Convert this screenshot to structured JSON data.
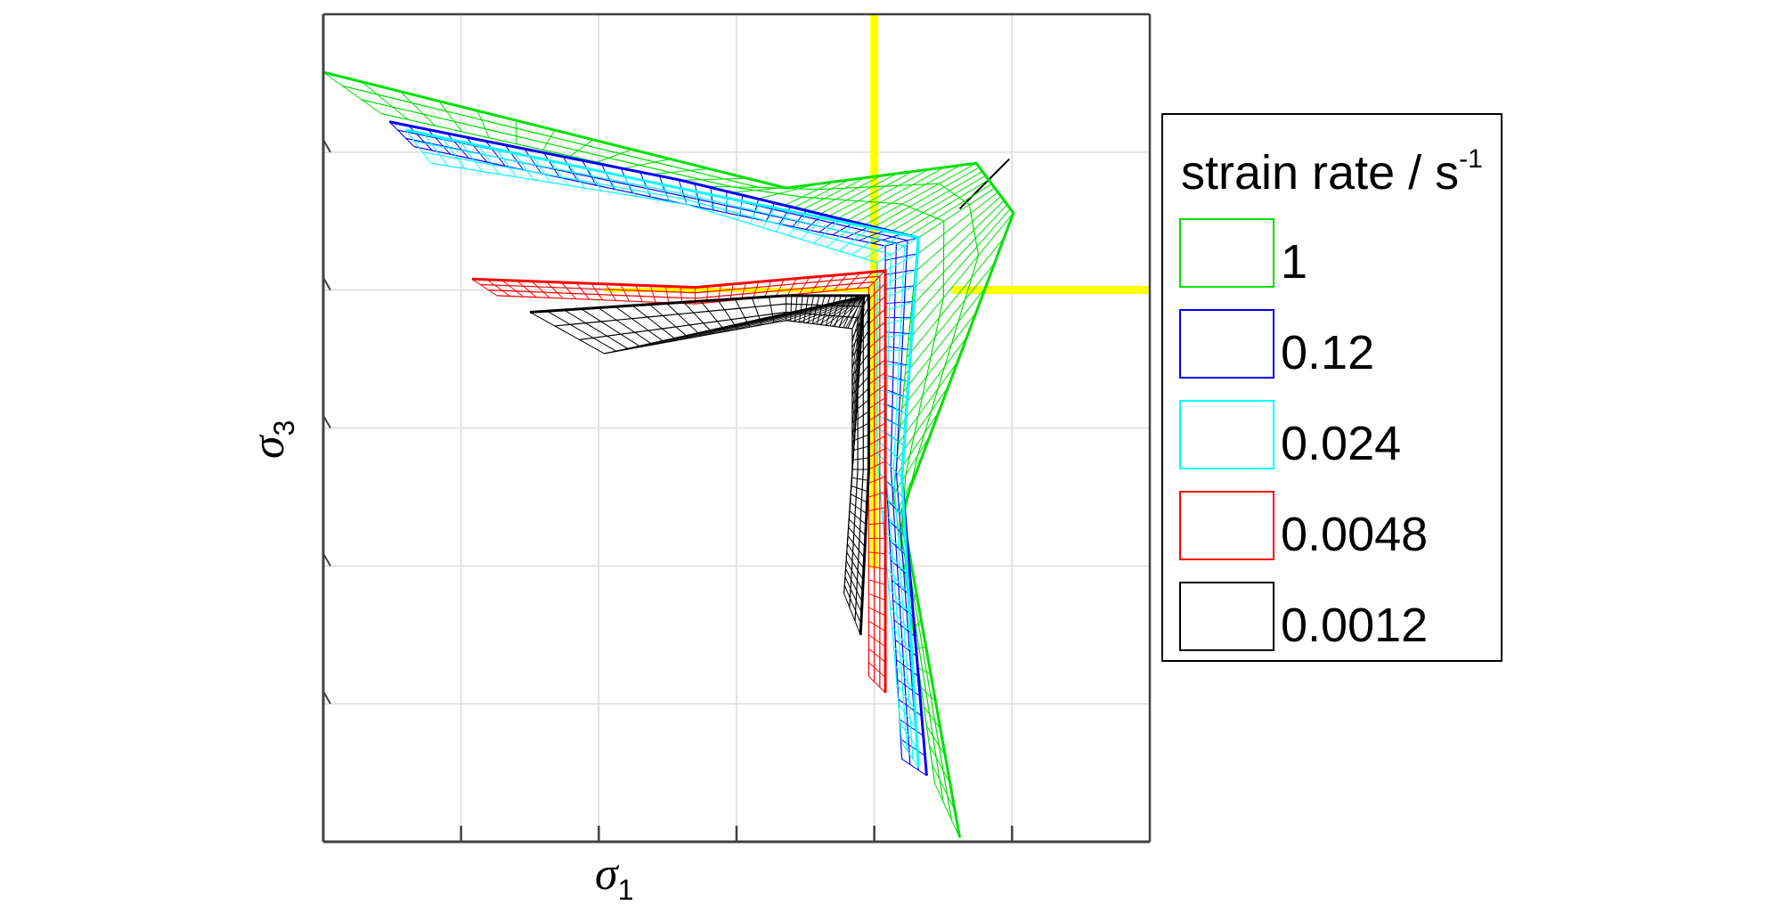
{
  "chart_data": {
    "type": "line",
    "title": "",
    "xlabel": {
      "symbol": "σ",
      "subscript": "1"
    },
    "ylabel": {
      "symbol": "σ",
      "subscript": "3"
    },
    "grid": true,
    "tick_labels_shown": false,
    "legend": {
      "title": {
        "main": "strain rate / s",
        "superscript": "-1"
      },
      "placement": "right"
    },
    "reference_lines": {
      "color": "#ffff00"
    },
    "series": [
      {
        "name": "1",
        "color": "#00e000",
        "outline": [
          [
            0.0,
            0.07
          ],
          [
            0.56,
            0.21
          ],
          [
            0.79,
            0.18
          ],
          [
            0.835,
            0.24
          ],
          [
            0.7,
            0.6
          ],
          [
            0.77,
            0.995
          ]
        ],
        "inner": [
          [
            0.07,
            0.12
          ],
          [
            0.56,
            0.23
          ],
          [
            0.72,
            0.27
          ],
          [
            0.69,
            0.58
          ],
          [
            0.74,
            0.93
          ]
        ]
      },
      {
        "name": "0.12",
        "color": "#0000ff",
        "outline": [
          [
            0.08,
            0.13
          ],
          [
            0.43,
            0.2
          ],
          [
            0.72,
            0.27
          ],
          [
            0.7,
            0.56
          ],
          [
            0.73,
            0.92
          ]
        ],
        "inner": [
          [
            0.11,
            0.16
          ],
          [
            0.44,
            0.23
          ],
          [
            0.68,
            0.28
          ],
          [
            0.68,
            0.54
          ],
          [
            0.7,
            0.9
          ]
        ]
      },
      {
        "name": "0.024",
        "color": "#00ffff",
        "outline": [
          [
            0.1,
            0.14
          ],
          [
            0.43,
            0.21
          ],
          [
            0.72,
            0.27
          ],
          [
            0.7,
            0.56
          ],
          [
            0.72,
            0.91
          ]
        ],
        "inner": [
          [
            0.13,
            0.18
          ],
          [
            0.44,
            0.23
          ],
          [
            0.67,
            0.3
          ],
          [
            0.67,
            0.53
          ],
          [
            0.7,
            0.88
          ]
        ]
      },
      {
        "name": "0.0048",
        "color": "#ff0000",
        "outline": [
          [
            0.18,
            0.32
          ],
          [
            0.45,
            0.33
          ],
          [
            0.68,
            0.31
          ],
          [
            0.68,
            0.54
          ],
          [
            0.68,
            0.82
          ]
        ],
        "inner": [
          [
            0.21,
            0.34
          ],
          [
            0.45,
            0.35
          ],
          [
            0.66,
            0.33
          ],
          [
            0.66,
            0.55
          ],
          [
            0.66,
            0.8
          ]
        ]
      },
      {
        "name": "0.0012",
        "color": "#000000",
        "outline": [
          [
            0.25,
            0.36
          ],
          [
            0.56,
            0.34
          ],
          [
            0.66,
            0.34
          ],
          [
            0.66,
            0.55
          ],
          [
            0.65,
            0.75
          ]
        ],
        "inner": [
          [
            0.34,
            0.41
          ],
          [
            0.56,
            0.37
          ],
          [
            0.64,
            0.38
          ],
          [
            0.64,
            0.55
          ],
          [
            0.63,
            0.7
          ]
        ]
      }
    ]
  }
}
